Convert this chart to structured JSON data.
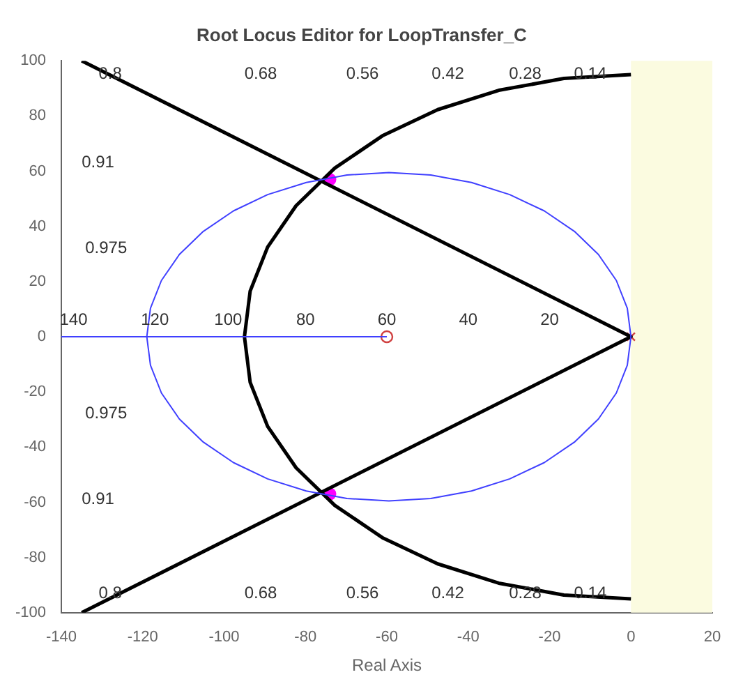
{
  "chart_data": {
    "type": "line",
    "title": "Root Locus Editor for LoopTransfer_C",
    "xlabel": "Real Axis",
    "xlim": [
      -140,
      20
    ],
    "xticks": [
      -140,
      -120,
      -100,
      -80,
      -60,
      -40,
      -20,
      0,
      20
    ],
    "ylim": [
      -100,
      100
    ],
    "yticks": [
      -100,
      -80,
      -60,
      -40,
      -20,
      0,
      20,
      40,
      60,
      80,
      100
    ],
    "grid": false,
    "legend": false,
    "bands": [
      {
        "axis": "x",
        "from": 0,
        "to": 20,
        "color": "#fbfbe0"
      }
    ],
    "series": [
      {
        "type": "line",
        "color": "#4040ff",
        "x": [
          -140,
          -119,
          -118.1,
          -115.4,
          -111,
          -105.1,
          -97.7,
          -89.3,
          -79.8,
          -69.8,
          -59.5,
          -49.2,
          -39.2,
          -29.8,
          -21.3,
          -13.9,
          -8,
          -3.6,
          -0.9,
          0
        ],
        "values": [
          0,
          0,
          10.3,
          20.4,
          29.8,
          38.2,
          45.6,
          51.5,
          55.9,
          58.6,
          59.5,
          58.6,
          55.9,
          51.5,
          45.6,
          38.2,
          29.8,
          20.4,
          10.3,
          0
        ]
      },
      {
        "type": "line",
        "color": "#4040ff",
        "x": [
          -119,
          -118.1,
          -115.4,
          -111,
          -105.1,
          -97.7,
          -89.3,
          -79.8,
          -69.8,
          -59.5,
          -49.2,
          -39.2,
          -29.8,
          -21.3,
          -13.9,
          -8,
          -3.6,
          -0.9,
          0
        ],
        "values": [
          0,
          -10.3,
          -20.4,
          -29.8,
          -38.2,
          -45.6,
          -51.5,
          -55.9,
          -58.6,
          -59.5,
          -58.6,
          -55.9,
          -51.5,
          -45.6,
          -38.2,
          -29.8,
          -20.4,
          -10.3,
          0
        ]
      },
      {
        "type": "line",
        "color": "#4040ff",
        "x": [
          -119,
          -60
        ],
        "values": [
          0,
          0
        ]
      },
      {
        "type": "line",
        "color": "#000000",
        "x": [
          0,
          -16.5,
          -32.5,
          -47.5,
          -61.1,
          -72.8,
          -82.3,
          -89.3,
          -93.6,
          -95,
          -93.6,
          -89.3,
          -82.3,
          -72.8,
          -61.1,
          -47.5,
          -32.5,
          -16.5,
          0
        ],
        "values": [
          95,
          93.6,
          89.3,
          82.3,
          72.8,
          61.1,
          47.5,
          32.5,
          16.5,
          0,
          -16.5,
          -32.5,
          -47.5,
          -61.1,
          -72.8,
          -82.3,
          -89.3,
          -93.6,
          -95
        ]
      },
      {
        "type": "line",
        "color": "#000000",
        "x": [
          -135,
          0,
          -135
        ],
        "values": [
          100,
          0,
          -100
        ]
      },
      {
        "type": "scatter",
        "color": "#ff00ff",
        "marker": "circle",
        "x": [
          -74,
          -74
        ],
        "values": [
          57,
          -57
        ]
      },
      {
        "type": "scatter",
        "color": "#d04040",
        "marker": "circle",
        "x": [
          -60
        ],
        "values": [
          0
        ]
      },
      {
        "type": "scatter",
        "color": "#d04040",
        "marker": "cross",
        "x": [
          0
        ],
        "values": [
          0
        ]
      }
    ],
    "annotations": [
      "0.8",
      "0.68",
      "0.56",
      "0.42",
      "0.28",
      "0.14",
      "0.91",
      "0.975",
      "0.975",
      "0.91",
      "0.8",
      "0.68",
      "0.56",
      "0.42",
      "0.28",
      "0.14",
      "140",
      "120",
      "100",
      "80",
      "60",
      "40",
      "20"
    ]
  }
}
